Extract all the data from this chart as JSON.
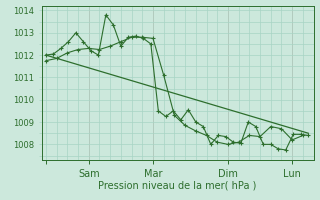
{
  "xlabel": "Pression niveau de la mer( hPa )",
  "bg_color": "#cce8dc",
  "grid_color": "#a8d4c4",
  "line_color": "#2d6e2d",
  "ylim": [
    1007.3,
    1014.2
  ],
  "yticks": [
    1008,
    1009,
    1010,
    1011,
    1012,
    1013,
    1014
  ],
  "day_ticks_x": [
    0.0,
    2.0,
    5.0,
    8.5,
    11.5
  ],
  "day_labels": [
    "",
    "Sam",
    "Mar",
    "Dim",
    "Lun"
  ],
  "xlim": [
    -0.2,
    12.5
  ],
  "series1_x": [
    0.0,
    0.35,
    0.7,
    1.05,
    1.4,
    1.75,
    2.1,
    2.45,
    2.8,
    3.15,
    3.5,
    3.85,
    4.2,
    4.55,
    4.9,
    5.25,
    5.6,
    5.95,
    6.3,
    6.65,
    7.0,
    7.35,
    7.7,
    8.05,
    8.4,
    8.75,
    9.1,
    9.45,
    9.8,
    10.15,
    10.5,
    10.85,
    11.2,
    11.55,
    11.9,
    12.25
  ],
  "series1_y": [
    1012.0,
    1012.05,
    1012.3,
    1012.6,
    1013.0,
    1012.6,
    1012.2,
    1012.0,
    1013.8,
    1013.35,
    1012.4,
    1012.8,
    1012.85,
    1012.75,
    1012.5,
    1009.5,
    1009.25,
    1009.5,
    1009.1,
    1009.55,
    1009.0,
    1008.8,
    1008.0,
    1008.4,
    1008.35,
    1008.1,
    1008.05,
    1009.0,
    1008.8,
    1008.0,
    1008.0,
    1007.8,
    1007.75,
    1008.45,
    1008.45,
    1008.4
  ],
  "series2_x": [
    0.0,
    0.5,
    1.0,
    1.5,
    2.0,
    2.5,
    3.0,
    3.5,
    4.0,
    4.5,
    5.0,
    5.5,
    6.0,
    6.5,
    7.0,
    7.5,
    8.0,
    8.5,
    9.0,
    9.5,
    10.0,
    10.5,
    11.0,
    11.5,
    12.0
  ],
  "series2_y": [
    1011.75,
    1011.85,
    1012.1,
    1012.25,
    1012.3,
    1012.25,
    1012.4,
    1012.6,
    1012.8,
    1012.8,
    1012.75,
    1011.1,
    1009.3,
    1008.85,
    1008.6,
    1008.4,
    1008.1,
    1008.0,
    1008.1,
    1008.4,
    1008.35,
    1008.8,
    1008.7,
    1008.2,
    1008.4
  ],
  "trend_x": [
    0.0,
    12.25
  ],
  "trend_y": [
    1012.0,
    1008.5
  ],
  "vline_x": [
    2.0,
    5.0,
    8.5,
    11.5
  ],
  "vline_color": "#cc8888"
}
